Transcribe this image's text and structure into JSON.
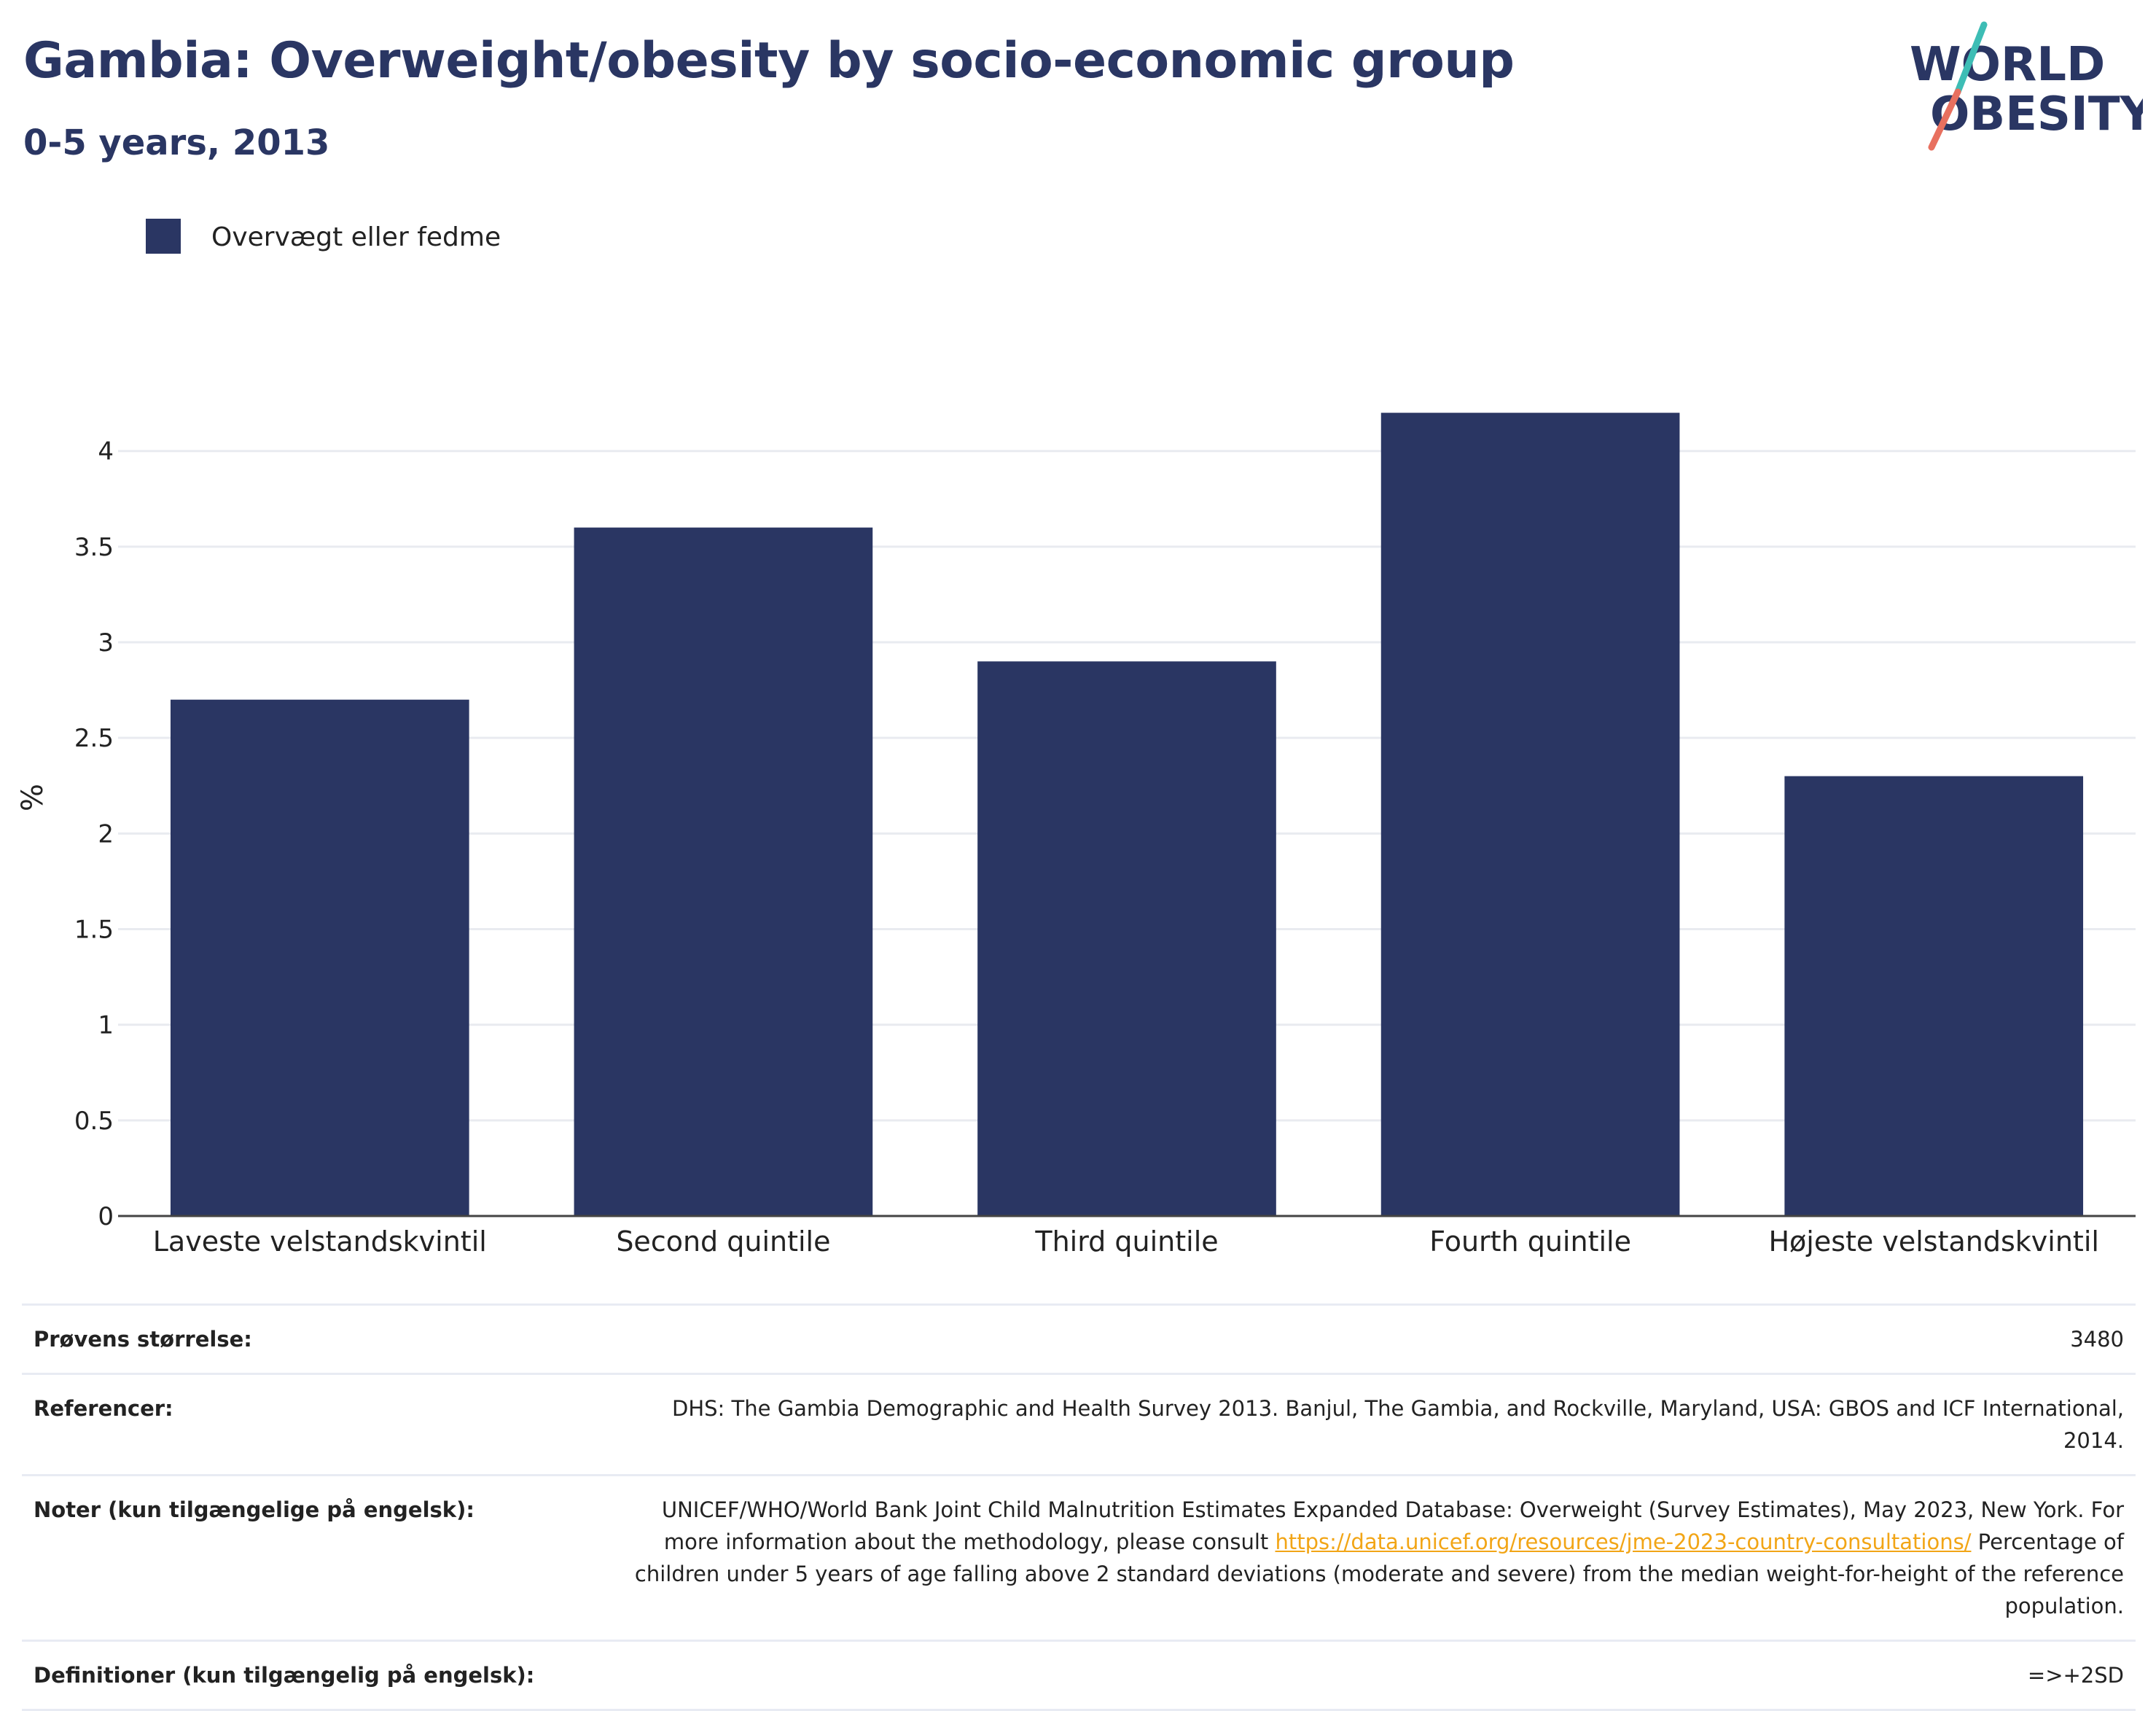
{
  "header": {
    "title": "Gambia: Overweight/obesity by socio-economic group",
    "subtitle": "0-5 years, 2013"
  },
  "logo": {
    "line1": "WORLD",
    "line2": "OBESITY",
    "icon": "world-obesity-logo"
  },
  "colors": {
    "bar": "#2a3663",
    "title": "#2a3663",
    "link": "#f2a516",
    "logo_teal": "#3dbdb5",
    "logo_coral": "#e8705f"
  },
  "chart_data": {
    "type": "bar",
    "title": "Gambia: Overweight/obesity by socio-economic group",
    "subtitle": "0-5 years, 2013",
    "categories": [
      "Laveste velstandskvintil",
      "Second quintile",
      "Third quintile",
      "Fourth quintile",
      "Højeste velstandskvintil"
    ],
    "series": [
      {
        "name": "Overvægt eller fedme",
        "values": [
          2.7,
          3.6,
          2.9,
          4.2,
          2.3
        ]
      }
    ],
    "xlabel": "",
    "ylabel": "%",
    "ylim": [
      0,
      4.3
    ],
    "yticks": [
      0,
      0.5,
      1,
      1.5,
      2,
      2.5,
      3,
      3.5,
      4
    ],
    "ytick_labels": [
      "0",
      "0.5",
      "1",
      "1.5",
      "2",
      "2.5",
      "3",
      "3.5",
      "4"
    ],
    "grid": true,
    "legend_position": "top-left"
  },
  "info": {
    "sample_size": {
      "label": "Prøvens størrelse:",
      "value": "3480"
    },
    "references": {
      "label": "Referencer:",
      "value": "DHS: The Gambia Demographic and Health Survey 2013. Banjul, The Gambia, and Rockville, Maryland, USA: GBOS and ICF International, 2014."
    },
    "notes": {
      "label": "Noter (kun tilgængelige på engelsk):",
      "text_before": "UNICEF/WHO/World Bank Joint Child Malnutrition Estimates Expanded Database: Overweight (Survey Estimates), May 2023, New York. For more information about the methodology, please consult ",
      "link": "https://data.unicef.org/resources/jme-2023-country-consultations/",
      "text_after": " Percentage of children under 5 years of age falling above 2 standard deviations (moderate and severe) from the median weight-for-height of the reference population."
    },
    "definitions": {
      "label": "Definitioner (kun tilgængelig på engelsk):",
      "value": "=>+2SD"
    }
  }
}
